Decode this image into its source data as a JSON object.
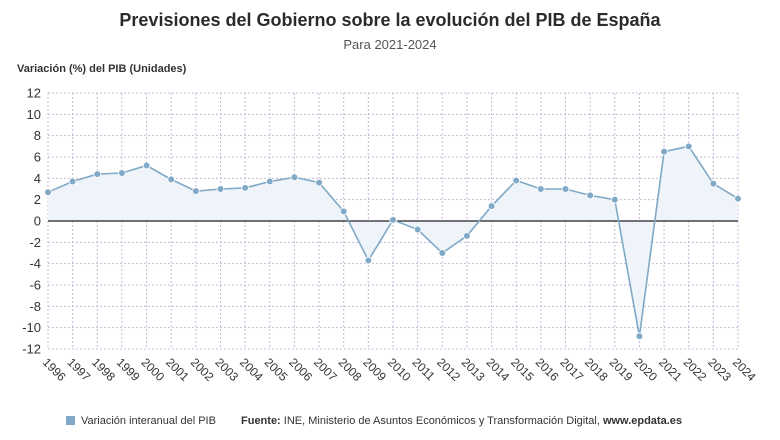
{
  "chart_data": {
    "type": "area",
    "title": "Previsiones del Gobierno sobre la evolución del PIB de España",
    "subtitle": "Para 2021-2024",
    "ylabel": "Variación (%) del PIB (Unidades)",
    "xlabel": "",
    "categories": [
      "1996",
      "1997",
      "1998",
      "1999",
      "2000",
      "2001",
      "2002",
      "2003",
      "2004",
      "2005",
      "2006",
      "2007",
      "2008",
      "2009",
      "2010",
      "2011",
      "2012",
      "2013",
      "2014",
      "2015",
      "2016",
      "2017",
      "2018",
      "2019",
      "2020",
      "2021",
      "2022",
      "2023",
      "2024"
    ],
    "series": [
      {
        "name": "Variación interanual del PIB",
        "values": [
          2.7,
          3.7,
          4.4,
          4.5,
          5.2,
          3.9,
          2.8,
          3.0,
          3.1,
          3.7,
          4.1,
          3.6,
          0.9,
          -3.7,
          0.1,
          -0.8,
          -3.0,
          -1.4,
          1.4,
          3.8,
          3.0,
          3.0,
          2.4,
          2.0,
          -10.8,
          6.5,
          7.0,
          3.5,
          2.1
        ]
      }
    ],
    "ylim": [
      -12,
      12
    ],
    "yticks": [
      -12,
      -10,
      -8,
      -6,
      -4,
      -2,
      0,
      2,
      4,
      6,
      8,
      10,
      12
    ],
    "grid": true,
    "legend": "bottom-left"
  },
  "colors": {
    "line": "#7fa9c6",
    "marker": "#7fa9c6",
    "fill": "#eef4f9",
    "grid": "#c9b8d6",
    "zero_line": "#222222"
  },
  "footer": {
    "legend_label": "Variación interanual del PIB",
    "source_label": "Fuente:",
    "source_text": "INE, Ministerio de Asuntos Económicos y Transformación Digital,",
    "source_site": "www.epdata.es"
  }
}
